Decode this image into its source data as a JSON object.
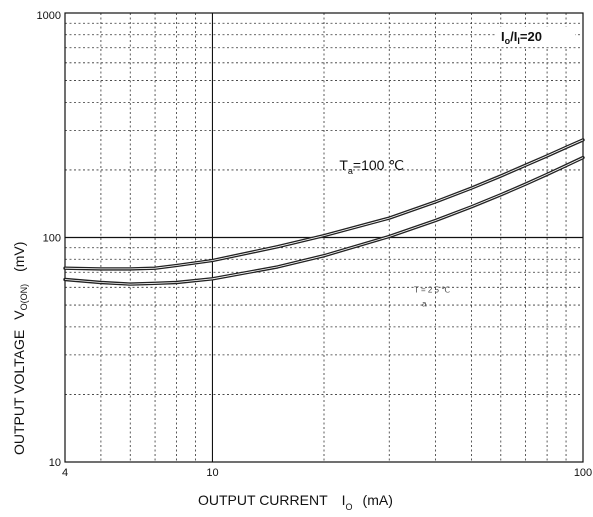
{
  "chart_data": {
    "type": "line",
    "title": "",
    "xlabel": "OUTPUT CURRENT",
    "xlabel_symbol": "I",
    "xlabel_symbol_sub": "O",
    "xlabel_unit": "(mA)",
    "ylabel": "OUTPUT VOLTAGE",
    "ylabel_symbol": "V",
    "ylabel_symbol_sub": "O(ON)",
    "ylabel_unit": "(mV)",
    "x_scale": "log",
    "y_scale": "log",
    "xlim": [
      4,
      100
    ],
    "ylim": [
      10,
      1000
    ],
    "x_ticks": [
      "4",
      "10",
      "100"
    ],
    "y_ticks": [
      "10",
      "100",
      "1000"
    ],
    "grid": "dotted",
    "series": [
      {
        "x": [
          4,
          5,
          6,
          7,
          8,
          10,
          15,
          20,
          30,
          40,
          50,
          60,
          70,
          80,
          90,
          100
        ],
        "values": [
          73,
          72.5,
          72.5,
          73,
          75,
          79,
          91,
          102,
          122,
          144,
          166,
          188,
          210,
          231,
          252,
          272
        ]
      },
      {
        "x": [
          4,
          5,
          6,
          7,
          8,
          10,
          15,
          20,
          30,
          40,
          50,
          60,
          70,
          80,
          90,
          100
        ],
        "values": [
          65,
          63,
          62,
          62.5,
          63,
          65.5,
          74,
          83,
          101,
          119,
          137,
          155,
          173,
          191,
          209,
          227
        ]
      }
    ],
    "annotations": [
      {
        "text": "T",
        "sub": "a",
        "suffix": "=100 ℃",
        "x": 22,
        "y": 200
      },
      {
        "text": "T",
        "sub": "a",
        "suffix": "= 2 5  ℃",
        "x": 35,
        "y": 57
      },
      {
        "text": "I",
        "sub": "o",
        "mid": "/I",
        "sub2": "I",
        "suffix": "=20",
        "position": "top-right"
      }
    ]
  }
}
